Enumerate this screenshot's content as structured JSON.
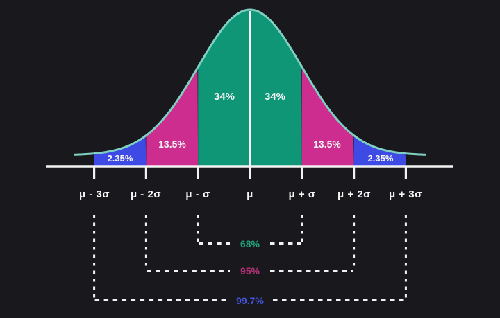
{
  "chart_data": {
    "type": "area",
    "description": "Normal distribution bell curve illustrating the 68-95-99.7 empirical rule",
    "background": "#19191d",
    "curve_color": "#7fd0c3",
    "axis_color": "#f2f2f2",
    "center_line_color": "#ffffff",
    "x_tick_labels": [
      "μ - 3σ",
      "μ - 2σ",
      "μ - σ",
      "μ",
      "μ + σ",
      "μ + 2σ",
      "μ + 3σ"
    ],
    "x_tick_sigma": [
      -3,
      -2,
      -1,
      0,
      1,
      2,
      3
    ],
    "regions": [
      {
        "from_sigma": -3,
        "to_sigma": -2,
        "percent": "2.35%",
        "value": 2.35,
        "color": "#3e4ae4"
      },
      {
        "from_sigma": -2,
        "to_sigma": -1,
        "percent": "13.5%",
        "value": 13.5,
        "color": "#cd2d8e"
      },
      {
        "from_sigma": -1,
        "to_sigma": 0,
        "percent": "34%",
        "value": 34,
        "color": "#0e9677"
      },
      {
        "from_sigma": 0,
        "to_sigma": 1,
        "percent": "34%",
        "value": 34,
        "color": "#0e9677"
      },
      {
        "from_sigma": 1,
        "to_sigma": 2,
        "percent": "13.5%",
        "value": 13.5,
        "color": "#cd2d8e"
      },
      {
        "from_sigma": 2,
        "to_sigma": 3,
        "percent": "2.35%",
        "value": 2.35,
        "color": "#3e4ae4"
      }
    ],
    "brackets": [
      {
        "label": "68%",
        "value": 68,
        "from_sigma": -1,
        "to_sigma": 1,
        "color": "#21a078"
      },
      {
        "label": "95%",
        "value": 95,
        "from_sigma": -2,
        "to_sigma": 2,
        "color": "#b53277"
      },
      {
        "label": "99.7%",
        "value": 99.7,
        "from_sigma": -3,
        "to_sigma": 3,
        "color": "#4354de"
      }
    ]
  }
}
